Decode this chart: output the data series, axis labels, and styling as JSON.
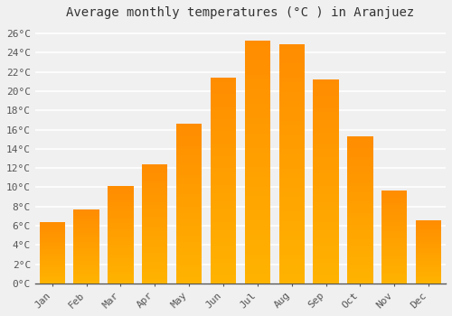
{
  "title": "Average monthly temperatures (°C ) in Aranjuez",
  "months": [
    "Jan",
    "Feb",
    "Mar",
    "Apr",
    "May",
    "Jun",
    "Jul",
    "Aug",
    "Sep",
    "Oct",
    "Nov",
    "Dec"
  ],
  "temperatures": [
    6.4,
    7.7,
    10.1,
    12.4,
    16.6,
    21.4,
    25.2,
    24.9,
    21.2,
    15.3,
    9.7,
    6.6
  ],
  "bar_color_bottom": "#FFB300",
  "bar_color_top": "#FF8C00",
  "ylim": [
    0,
    27
  ],
  "ytick_step": 2,
  "background_color": "#f0f0f0",
  "grid_color": "#ffffff",
  "title_fontsize": 10,
  "tick_fontsize": 8,
  "font_family": "monospace"
}
